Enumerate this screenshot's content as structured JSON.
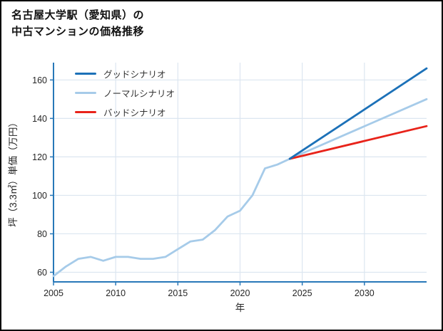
{
  "page": {
    "title_lines": [
      "名古屋大学駅（愛知県）の",
      "中古マンションの価格推移"
    ]
  },
  "chart_data": {
    "type": "line",
    "title": "名古屋大学駅（愛知県）の中古マンションの価格推移",
    "xlabel": "年",
    "ylabel": "坪（3.3㎡）単価（万円）",
    "xlim": [
      2005,
      2035
    ],
    "ylim": [
      55,
      169
    ],
    "xticks": [
      2005,
      2010,
      2015,
      2020,
      2025,
      2030
    ],
    "yticks": [
      60,
      80,
      100,
      120,
      140,
      160
    ],
    "grid": true,
    "legend_position": "upper-left",
    "colors": {
      "axis": "#2878b8",
      "grid": "#dce6f0",
      "tick_label": "#262626",
      "good": "#1c71b8",
      "normal": "#a6cbe9",
      "bad": "#e8231a"
    },
    "legend": [
      {
        "label": "グッドシナリオ",
        "color": "#1c71b8"
      },
      {
        "label": "ノーマルシナリオ",
        "color": "#a6cbe9"
      },
      {
        "label": "バッドシナリオ",
        "color": "#e8231a"
      }
    ],
    "series": [
      {
        "id": "history",
        "name": "ノーマルシナリオ",
        "color": "#a6cbe9",
        "x": [
          2005,
          2006,
          2007,
          2008,
          2009,
          2010,
          2011,
          2012,
          2013,
          2014,
          2015,
          2016,
          2017,
          2018,
          2019,
          2020,
          2021,
          2022,
          2023,
          2024
        ],
        "y": [
          58,
          63,
          67,
          68,
          66,
          68,
          68,
          67,
          67,
          68,
          72,
          76,
          77,
          82,
          89,
          92,
          100,
          114,
          116,
          119
        ]
      },
      {
        "id": "normal-forecast",
        "name": "ノーマルシナリオ",
        "color": "#a6cbe9",
        "x": [
          2024,
          2035
        ],
        "y": [
          119,
          150
        ]
      },
      {
        "id": "bad-forecast",
        "name": "バッドシナリオ",
        "color": "#e8231a",
        "x": [
          2024,
          2035
        ],
        "y": [
          119,
          136
        ]
      },
      {
        "id": "good-forecast",
        "name": "グッドシナリオ",
        "color": "#1c71b8",
        "x": [
          2024,
          2035
        ],
        "y": [
          119,
          166
        ]
      }
    ]
  }
}
